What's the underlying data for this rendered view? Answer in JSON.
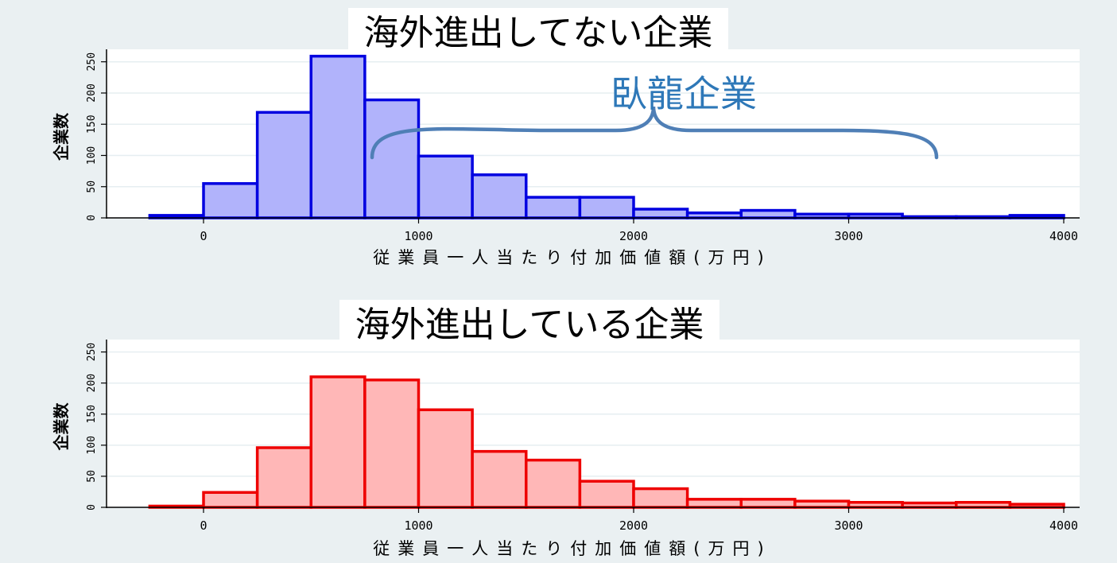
{
  "chart_data": [
    {
      "type": "bar",
      "title": "海外進出してない企業",
      "xlabel": "従業員一人当たり付加価値額(万円)",
      "ylabel": "企業数",
      "xlim": [
        -500,
        4100
      ],
      "ylim": [
        0,
        270
      ],
      "xticks": [
        "0",
        "1000",
        "2000",
        "3000",
        "4000"
      ],
      "yticks": [
        "0",
        "50",
        "100",
        "150",
        "200",
        "250"
      ],
      "bin_width": 250,
      "bins": [
        -250,
        0,
        250,
        500,
        750,
        1000,
        1250,
        1500,
        1750,
        2000,
        2250,
        2500,
        2750,
        3000,
        3250,
        3500,
        3750
      ],
      "values": [
        4,
        55,
        169,
        259,
        189,
        99,
        69,
        33,
        33,
        14,
        8,
        12,
        6,
        6,
        2,
        2,
        4
      ],
      "grid": true,
      "colors": {
        "fill": "#b1b3fb",
        "stroke": "#0000e0"
      },
      "annotation": "臥龍企業"
    },
    {
      "type": "bar",
      "title": "海外進出している企業",
      "xlabel": "従業員一人当たり付加価値額(万円)",
      "ylabel": "企業数",
      "xlim": [
        -500,
        4100
      ],
      "ylim": [
        0,
        270
      ],
      "xticks": [
        "0",
        "1000",
        "2000",
        "3000",
        "4000"
      ],
      "yticks": [
        "0",
        "50",
        "100",
        "150",
        "200",
        "250"
      ],
      "bin_width": 250,
      "bins": [
        -250,
        0,
        250,
        500,
        750,
        1000,
        1250,
        1500,
        1750,
        2000,
        2250,
        2500,
        2750,
        3000,
        3250,
        3500,
        3750
      ],
      "values": [
        2,
        24,
        96,
        210,
        205,
        157,
        90,
        76,
        42,
        30,
        13,
        13,
        10,
        8,
        7,
        8,
        5
      ],
      "grid": true,
      "colors": {
        "fill": "#ffb7b7",
        "stroke": "#ee0000"
      }
    }
  ]
}
